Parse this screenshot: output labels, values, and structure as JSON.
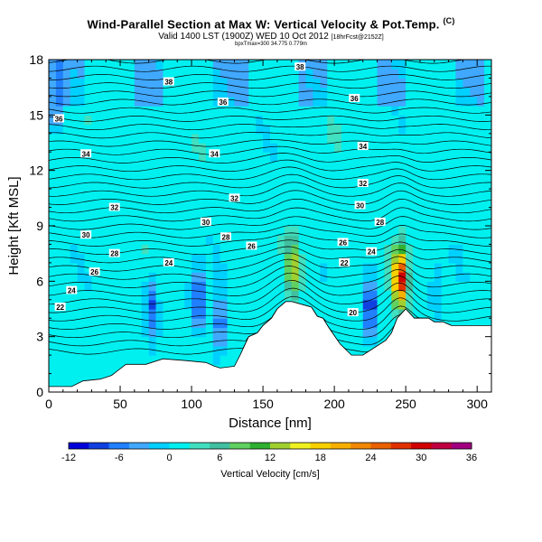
{
  "header": {
    "title": "Wind-Parallel Section at Max W: Vertical Velocity & Pot.Temp.",
    "copyright_mark": "(C)",
    "valid_line": "Valid 1400 LST (1900Z) WED 10 Oct 2012",
    "valid_suffix": "[18hrFcst@2152Z]",
    "sub_line": "bpxTmax=300 34.775 0.779m"
  },
  "chart_data": {
    "type": "heatmap",
    "xlabel": "Distance [nm]",
    "ylabel": "Height [Kft MSL]",
    "xlim": [
      0,
      310
    ],
    "ylim": [
      0,
      18
    ],
    "x_ticks": [
      "0",
      "50",
      "100",
      "150",
      "200",
      "250",
      "300"
    ],
    "y_ticks": [
      "0",
      "3",
      "6",
      "9",
      "12",
      "15",
      "18"
    ],
    "grid": false,
    "terrain_profile": {
      "x": [
        0,
        16,
        24,
        36,
        44,
        54,
        68,
        80,
        96,
        110,
        116,
        120,
        130,
        134,
        140,
        146,
        150,
        156,
        160,
        166,
        170,
        184,
        188,
        192,
        196,
        204,
        212,
        220,
        236,
        240,
        244,
        250,
        256,
        262,
        266,
        270,
        276,
        282,
        288,
        300,
        310
      ],
      "y": [
        0.3,
        0.3,
        0.6,
        0.7,
        0.9,
        1.5,
        1.5,
        1.8,
        1.7,
        1.6,
        1.4,
        1.3,
        1.4,
        2.0,
        3.0,
        3.2,
        3.6,
        4.0,
        4.5,
        4.9,
        4.9,
        4.6,
        4.1,
        4.0,
        3.5,
        2.6,
        2.0,
        2.0,
        2.8,
        3.2,
        4.0,
        4.5,
        4.0,
        4.0,
        4.0,
        3.8,
        3.8,
        3.6,
        3.6,
        3.6,
        3.6
      ]
    },
    "updraft_cores": [
      {
        "x": 171,
        "z": 6.8,
        "w": 13
      },
      {
        "x": 246,
        "z": 6.2,
        "w": 30
      }
    ],
    "downdraft_cores": [
      {
        "x": 72,
        "z": 4.8,
        "w": -9
      },
      {
        "x": 105,
        "z": 5.0,
        "w": -10
      },
      {
        "x": 120,
        "z": 3.8,
        "w": -9
      },
      {
        "x": 225,
        "z": 4.6,
        "w": -12
      },
      {
        "x": 272,
        "z": 5.5,
        "w": -3
      }
    ],
    "theta_contour_labels": [
      {
        "text": "38",
        "x": 176,
        "z": 17.6
      },
      {
        "text": "38",
        "x": 84,
        "z": 16.8
      },
      {
        "text": "36",
        "x": 122,
        "z": 15.7
      },
      {
        "text": "36",
        "x": 214,
        "z": 15.9
      },
      {
        "text": "36",
        "x": 7,
        "z": 14.8
      },
      {
        "text": "34",
        "x": 26,
        "z": 12.9
      },
      {
        "text": "34",
        "x": 116,
        "z": 12.9
      },
      {
        "text": "34",
        "x": 220,
        "z": 13.3
      },
      {
        "text": "32",
        "x": 130,
        "z": 10.5
      },
      {
        "text": "32",
        "x": 220,
        "z": 11.3
      },
      {
        "text": "32",
        "x": 46,
        "z": 10.0
      },
      {
        "text": "30",
        "x": 110,
        "z": 9.2
      },
      {
        "text": "30",
        "x": 218,
        "z": 10.1
      },
      {
        "text": "30",
        "x": 26,
        "z": 8.5
      },
      {
        "text": "28",
        "x": 124,
        "z": 8.4
      },
      {
        "text": "28",
        "x": 232,
        "z": 9.2
      },
      {
        "text": "28",
        "x": 46,
        "z": 7.5
      },
      {
        "text": "26",
        "x": 142,
        "z": 7.9
      },
      {
        "text": "26",
        "x": 206,
        "z": 8.1
      },
      {
        "text": "26",
        "x": 32,
        "z": 6.5
      },
      {
        "text": "24",
        "x": 84,
        "z": 7.0
      },
      {
        "text": "24",
        "x": 226,
        "z": 7.6
      },
      {
        "text": "24",
        "x": 16,
        "z": 5.5
      },
      {
        "text": "22",
        "x": 207,
        "z": 7.0
      },
      {
        "text": "22",
        "x": 8,
        "z": 4.6
      },
      {
        "text": "20",
        "x": 213,
        "z": 4.3
      }
    ],
    "colorbar": {
      "label": "Vertical Velocity [cm/s]",
      "tick_labels": [
        "-12",
        "-6",
        "0",
        "6",
        "12",
        "18",
        "24",
        "30",
        "36"
      ],
      "ticks": [
        -12,
        -6,
        0,
        6,
        12,
        18,
        24,
        30,
        36
      ],
      "colors": [
        "#0000d8",
        "#1040e0",
        "#2080ff",
        "#40a8ff",
        "#00d0ff",
        "#00f0f0",
        "#40e0c0",
        "#40c0a0",
        "#60d060",
        "#30b030",
        "#a0d030",
        "#f0f020",
        "#f8d000",
        "#f8b000",
        "#f08800",
        "#e86000",
        "#e03000",
        "#d00000",
        "#c00040",
        "#a00080"
      ]
    }
  }
}
